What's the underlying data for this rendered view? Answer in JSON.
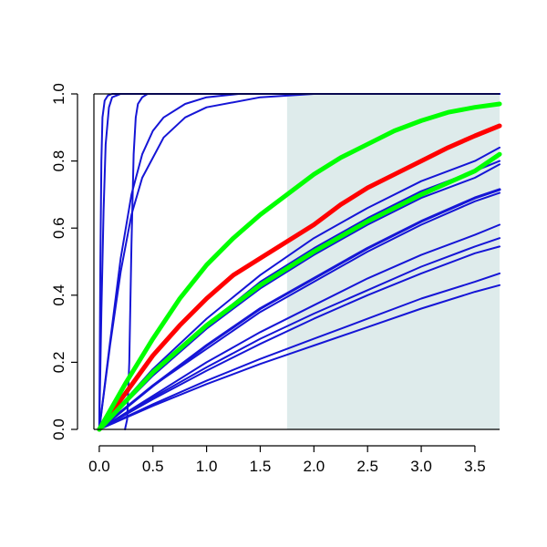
{
  "chart_data": {
    "type": "line",
    "title": "",
    "xlabel": "",
    "ylabel": "",
    "xlim": [
      -0.05,
      3.73
    ],
    "ylim": [
      0,
      1
    ],
    "x_ticks": [
      0.0,
      0.5,
      1.0,
      1.5,
      2.0,
      2.5,
      3.0,
      3.5
    ],
    "x_tick_labels": [
      "0.0",
      "0.5",
      "1.0",
      "1.5",
      "2.0",
      "2.5",
      "3.0",
      "3.5"
    ],
    "y_ticks": [
      0.0,
      0.2,
      0.4,
      0.6,
      0.8,
      1.0
    ],
    "y_tick_labels": [
      "0.0",
      "0.2",
      "0.4",
      "0.6",
      "0.8",
      "1.0"
    ],
    "grid": false,
    "legend": "none",
    "shaded_region": {
      "x_from": 1.75,
      "x_to": 3.73,
      "color": "#deebeb"
    },
    "colors": {
      "blue": "#1515d6",
      "red": "#ff0000",
      "green": "#00ff00"
    },
    "series": [
      {
        "color": "blue",
        "width": "thin",
        "x": [
          0,
          0.01,
          0.02,
          0.03,
          0.05,
          0.08,
          0.12,
          0.2,
          3.73
        ],
        "y": [
          0,
          0.5,
          0.8,
          0.93,
          0.98,
          0.995,
          1.0,
          1.0,
          1.0
        ]
      },
      {
        "color": "blue",
        "width": "thin",
        "x": [
          0,
          0.02,
          0.04,
          0.06,
          0.09,
          0.12,
          0.2,
          3.73
        ],
        "y": [
          0,
          0.35,
          0.65,
          0.85,
          0.96,
          0.99,
          1.0,
          1.0
        ]
      },
      {
        "color": "blue",
        "width": "thin",
        "x": [
          0.24,
          0.26,
          0.28,
          0.3,
          0.32,
          0.34,
          0.36,
          0.4,
          0.45,
          0.5,
          3.73
        ],
        "y": [
          0.0,
          0.03,
          0.2,
          0.55,
          0.82,
          0.93,
          0.97,
          0.99,
          1.0,
          1.0,
          1.0
        ]
      },
      {
        "color": "blue",
        "width": "thin",
        "x": [
          0,
          0.1,
          0.2,
          0.3,
          0.4,
          0.5,
          0.6,
          0.8,
          1.0,
          1.3,
          1.7,
          2.2,
          3.73
        ],
        "y": [
          0,
          0.26,
          0.51,
          0.7,
          0.82,
          0.89,
          0.93,
          0.97,
          0.99,
          1.0,
          1.0,
          1.0,
          1.0
        ]
      },
      {
        "color": "blue",
        "width": "thin",
        "x": [
          0,
          0.1,
          0.2,
          0.3,
          0.4,
          0.6,
          0.8,
          1.0,
          1.5,
          2.0,
          3.73
        ],
        "y": [
          0,
          0.25,
          0.47,
          0.64,
          0.75,
          0.87,
          0.93,
          0.96,
          0.99,
          1.0,
          1.0
        ]
      },
      {
        "color": "red",
        "width": "thick",
        "x": [
          0,
          0.25,
          0.5,
          0.75,
          1.0,
          1.25,
          1.5,
          1.75,
          2.0,
          2.25,
          2.5,
          2.75,
          3.0,
          3.25,
          3.5,
          3.73
        ],
        "y": [
          0,
          0.11,
          0.22,
          0.31,
          0.39,
          0.46,
          0.51,
          0.56,
          0.61,
          0.67,
          0.72,
          0.76,
          0.8,
          0.84,
          0.875,
          0.905
        ]
      },
      {
        "color": "green",
        "width": "thick",
        "x": [
          0,
          0.25,
          0.5,
          0.75,
          1.0,
          1.25,
          1.5,
          1.75,
          2.0,
          2.25,
          2.5,
          2.75,
          3.0,
          3.25,
          3.5,
          3.73
        ],
        "y": [
          0,
          0.14,
          0.27,
          0.39,
          0.49,
          0.57,
          0.64,
          0.7,
          0.76,
          0.81,
          0.85,
          0.89,
          0.92,
          0.945,
          0.96,
          0.97
        ]
      },
      {
        "color": "green",
        "width": "thick",
        "x": [
          0,
          0.5,
          1.0,
          1.5,
          2.0,
          2.5,
          3.0,
          3.5,
          3.73
        ],
        "y": [
          0,
          0.17,
          0.31,
          0.43,
          0.53,
          0.62,
          0.7,
          0.77,
          0.82
        ]
      },
      {
        "color": "blue",
        "width": "thin",
        "x": [
          0,
          0.5,
          1.0,
          1.5,
          2.0,
          2.5,
          3.0,
          3.5,
          3.73
        ],
        "y": [
          0,
          0.18,
          0.33,
          0.46,
          0.57,
          0.66,
          0.74,
          0.8,
          0.84
        ]
      },
      {
        "color": "blue",
        "width": "thin",
        "x": [
          0,
          0.5,
          1.0,
          1.5,
          2.0,
          2.5,
          3.0,
          3.5,
          3.73
        ],
        "y": [
          0,
          0.17,
          0.31,
          0.44,
          0.54,
          0.63,
          0.71,
          0.77,
          0.8
        ]
      },
      {
        "color": "blue",
        "width": "thin",
        "x": [
          0,
          0.5,
          1.0,
          1.5,
          2.0,
          2.5,
          3.0,
          3.5,
          3.73
        ],
        "y": [
          0,
          0.16,
          0.3,
          0.42,
          0.52,
          0.61,
          0.69,
          0.75,
          0.79
        ]
      },
      {
        "color": "blue",
        "width": "medium",
        "x": [
          0,
          0.5,
          1.0,
          1.5,
          2.0,
          2.5,
          3.0,
          3.5,
          3.73
        ],
        "y": [
          0,
          0.13,
          0.25,
          0.36,
          0.45,
          0.54,
          0.62,
          0.69,
          0.715
        ]
      },
      {
        "color": "blue",
        "width": "thin",
        "x": [
          0,
          0.5,
          1.0,
          1.5,
          2.0,
          2.5,
          3.0,
          3.5,
          3.73
        ],
        "y": [
          0,
          0.13,
          0.24,
          0.35,
          0.44,
          0.53,
          0.61,
          0.68,
          0.705
        ]
      },
      {
        "color": "blue",
        "width": "thin",
        "x": [
          0,
          0.5,
          1.0,
          1.5,
          2.0,
          2.5,
          3.0,
          3.5,
          3.73
        ],
        "y": [
          0,
          0.1,
          0.2,
          0.29,
          0.37,
          0.45,
          0.52,
          0.58,
          0.61
        ]
      },
      {
        "color": "blue",
        "width": "thin",
        "x": [
          0,
          0.5,
          1.0,
          1.5,
          2.0,
          2.5,
          3.0,
          3.5,
          3.73
        ],
        "y": [
          0,
          0.095,
          0.185,
          0.27,
          0.345,
          0.415,
          0.485,
          0.545,
          0.57
        ]
      },
      {
        "color": "blue",
        "width": "thin",
        "x": [
          0,
          0.5,
          1.0,
          1.5,
          2.0,
          2.5,
          3.0,
          3.5,
          3.73
        ],
        "y": [
          0,
          0.09,
          0.175,
          0.255,
          0.33,
          0.4,
          0.465,
          0.525,
          0.545
        ]
      },
      {
        "color": "blue",
        "width": "thin",
        "x": [
          0,
          0.5,
          1.0,
          1.5,
          2.0,
          2.5,
          3.0,
          3.5,
          3.73
        ],
        "y": [
          0,
          0.075,
          0.145,
          0.21,
          0.27,
          0.33,
          0.39,
          0.44,
          0.465
        ]
      },
      {
        "color": "blue",
        "width": "thin",
        "x": [
          0,
          0.5,
          1.0,
          1.5,
          2.0,
          2.5,
          3.0,
          3.5,
          3.73
        ],
        "y": [
          0,
          0.07,
          0.135,
          0.195,
          0.25,
          0.305,
          0.36,
          0.41,
          0.43
        ]
      }
    ]
  }
}
